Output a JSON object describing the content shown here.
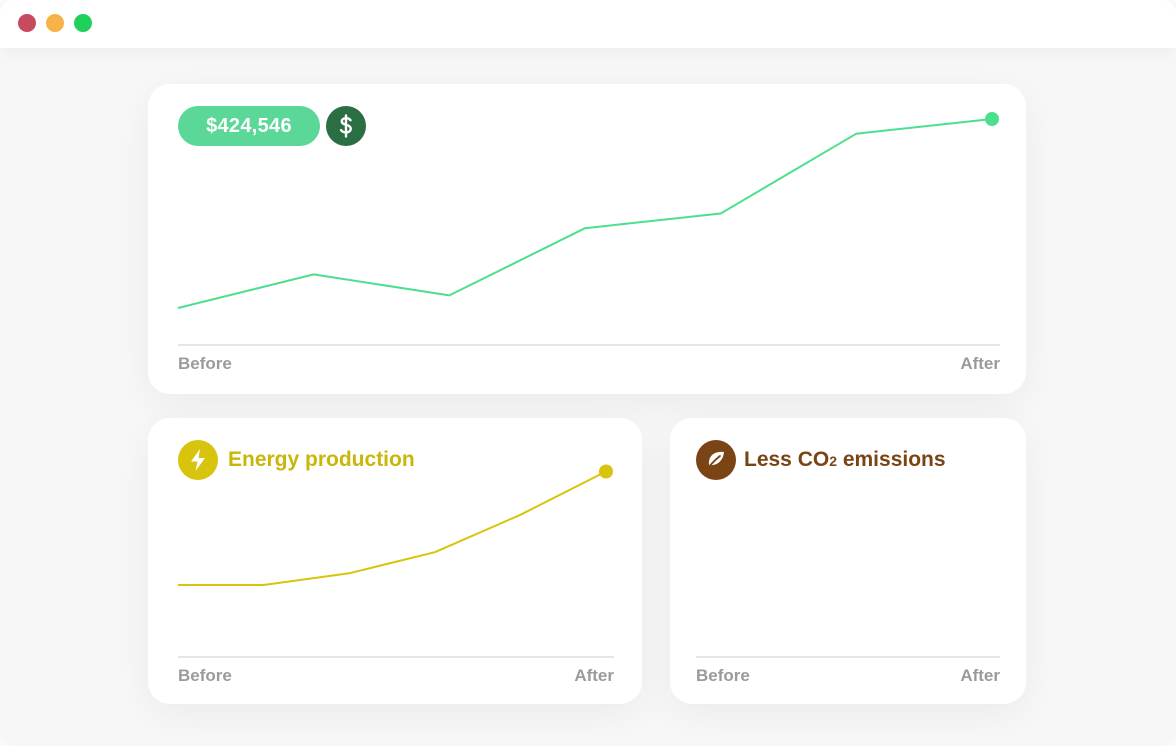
{
  "window": {
    "controls": [
      "close",
      "minimize",
      "maximize"
    ]
  },
  "revenue_card": {
    "amount": "$424,546",
    "badge_icon": "dollar-icon",
    "x_start_label": "Before",
    "x_end_label": "After",
    "line_color": "#4cdf8e"
  },
  "energy_card": {
    "title": "Energy production",
    "icon": "lightning-icon",
    "x_start_label": "Before",
    "x_end_label": "After",
    "accent_color": "#d8c40c"
  },
  "co2_card": {
    "title_prefix": "Less CO",
    "title_subscript": "2",
    "title_suffix": " emissions",
    "icon": "leaf-icon",
    "x_start_label": "Before",
    "x_end_label": "After",
    "accent_color": "#7a4414"
  },
  "chart_data": [
    {
      "type": "line",
      "x": [
        0,
        1,
        2,
        3,
        4,
        5,
        6
      ],
      "y": [
        1,
        2.6,
        1.6,
        4.8,
        5.5,
        9.3,
        10
      ],
      "xlabel": "",
      "ylabel": "",
      "x_tick_labels": [
        "Before",
        "After"
      ],
      "ylim": [
        0,
        10
      ],
      "grid": false,
      "end_marker": true
    },
    {
      "type": "line",
      "x": [
        0,
        1,
        2,
        3,
        4,
        5
      ],
      "y": [
        0,
        0,
        1,
        2.8,
        6,
        9.7
      ],
      "xlabel": "",
      "ylabel": "",
      "x_tick_labels": [
        "Before",
        "After"
      ],
      "ylim": [
        0,
        10
      ],
      "grid": false,
      "end_marker": true
    }
  ]
}
